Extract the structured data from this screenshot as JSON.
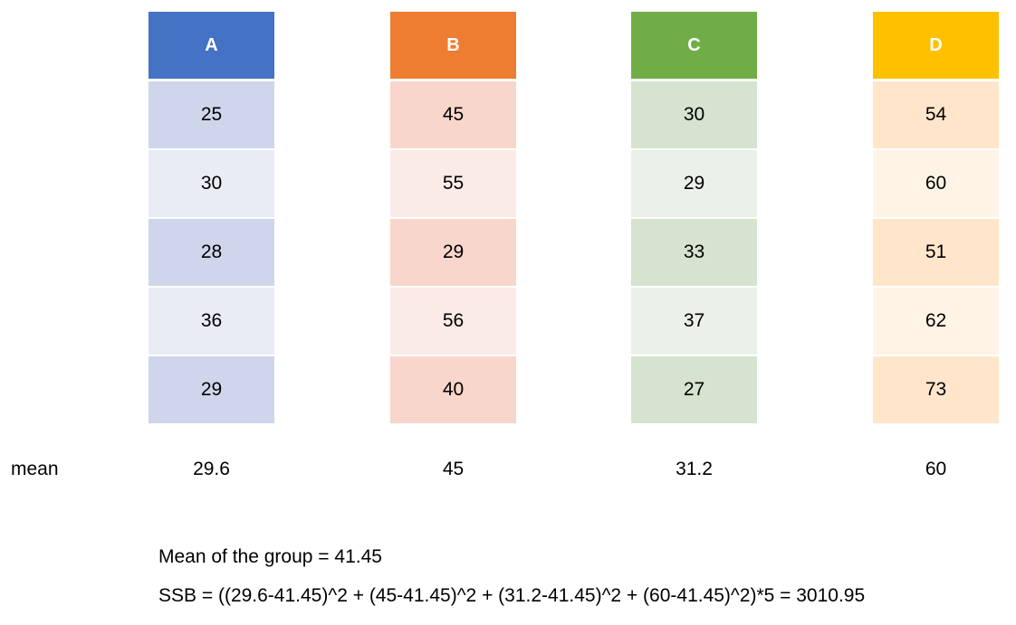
{
  "groups": [
    {
      "label": "A",
      "values": [
        "25",
        "30",
        "28",
        "36",
        "29"
      ],
      "mean": "29.6",
      "color": "#4472c4"
    },
    {
      "label": "B",
      "values": [
        "45",
        "55",
        "29",
        "56",
        "40"
      ],
      "mean": "45",
      "color": "#ed7d31"
    },
    {
      "label": "C",
      "values": [
        "30",
        "29",
        "33",
        "37",
        "27"
      ],
      "mean": "31.2",
      "color": "#70ad47"
    },
    {
      "label": "D",
      "values": [
        "54",
        "60",
        "51",
        "62",
        "73"
      ],
      "mean": "60",
      "color": "#ffc000"
    }
  ],
  "mean_label": "mean",
  "notes": {
    "group_mean": "Mean of the group = 41.45",
    "ssb": "SSB = ((29.6-41.45)^2 + (45-41.45)^2 + (31.2-41.45)^2 + (60-41.45)^2)*5 = 3010.95"
  }
}
